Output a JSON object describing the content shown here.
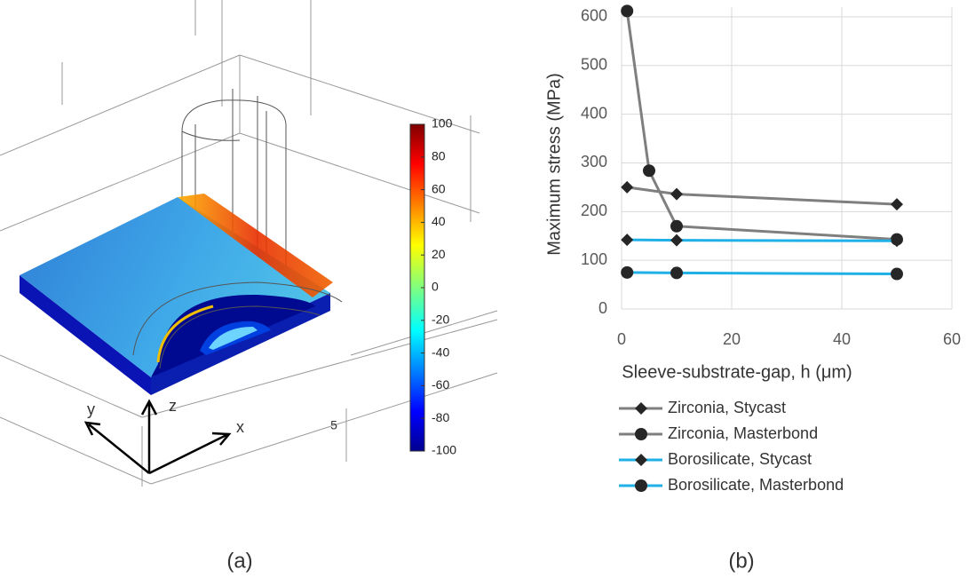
{
  "panel_a": {
    "colorbar": {
      "lim": [
        -100,
        100
      ],
      "ticks": [
        100,
        80,
        60,
        40,
        20,
        0,
        -20,
        -40,
        -60,
        -80,
        -100
      ]
    },
    "axis_labels": {
      "y": "y",
      "z": "z",
      "x": "x"
    },
    "scale_label": "5",
    "caption": "(a)"
  },
  "chart_data": {
    "type": "line",
    "caption": "(b)",
    "x_label": "Sleeve-substrate-gap, h (μm)",
    "y_label": "Maximum stress (MPa)",
    "xlim": [
      0,
      60
    ],
    "xticks": [
      0,
      20,
      40,
      60
    ],
    "ylim": [
      0,
      620
    ],
    "yticks": [
      0,
      100,
      200,
      300,
      400,
      500,
      600
    ],
    "grid": true,
    "series": [
      {
        "name": "Zirconia, Stycast",
        "color": "#7f7f7f",
        "marker": "diamond",
        "x": [
          1,
          10,
          50
        ],
        "values": [
          250,
          236,
          215
        ]
      },
      {
        "name": "Zirconia, Masterbond",
        "color": "#7f7f7f",
        "marker": "circle",
        "x": [
          1,
          5,
          10,
          50
        ],
        "values": [
          612,
          284,
          170,
          143
        ]
      },
      {
        "name": "Borosilicate, Stycast",
        "color": "#1fb0e8",
        "marker": "diamond",
        "x": [
          1,
          10,
          50
        ],
        "values": [
          142,
          141,
          140
        ]
      },
      {
        "name": "Borosilicate, Masterbond",
        "color": "#1fb0e8",
        "marker": "circle",
        "x": [
          1,
          10,
          50
        ],
        "values": [
          75,
          74,
          72
        ]
      }
    ]
  }
}
